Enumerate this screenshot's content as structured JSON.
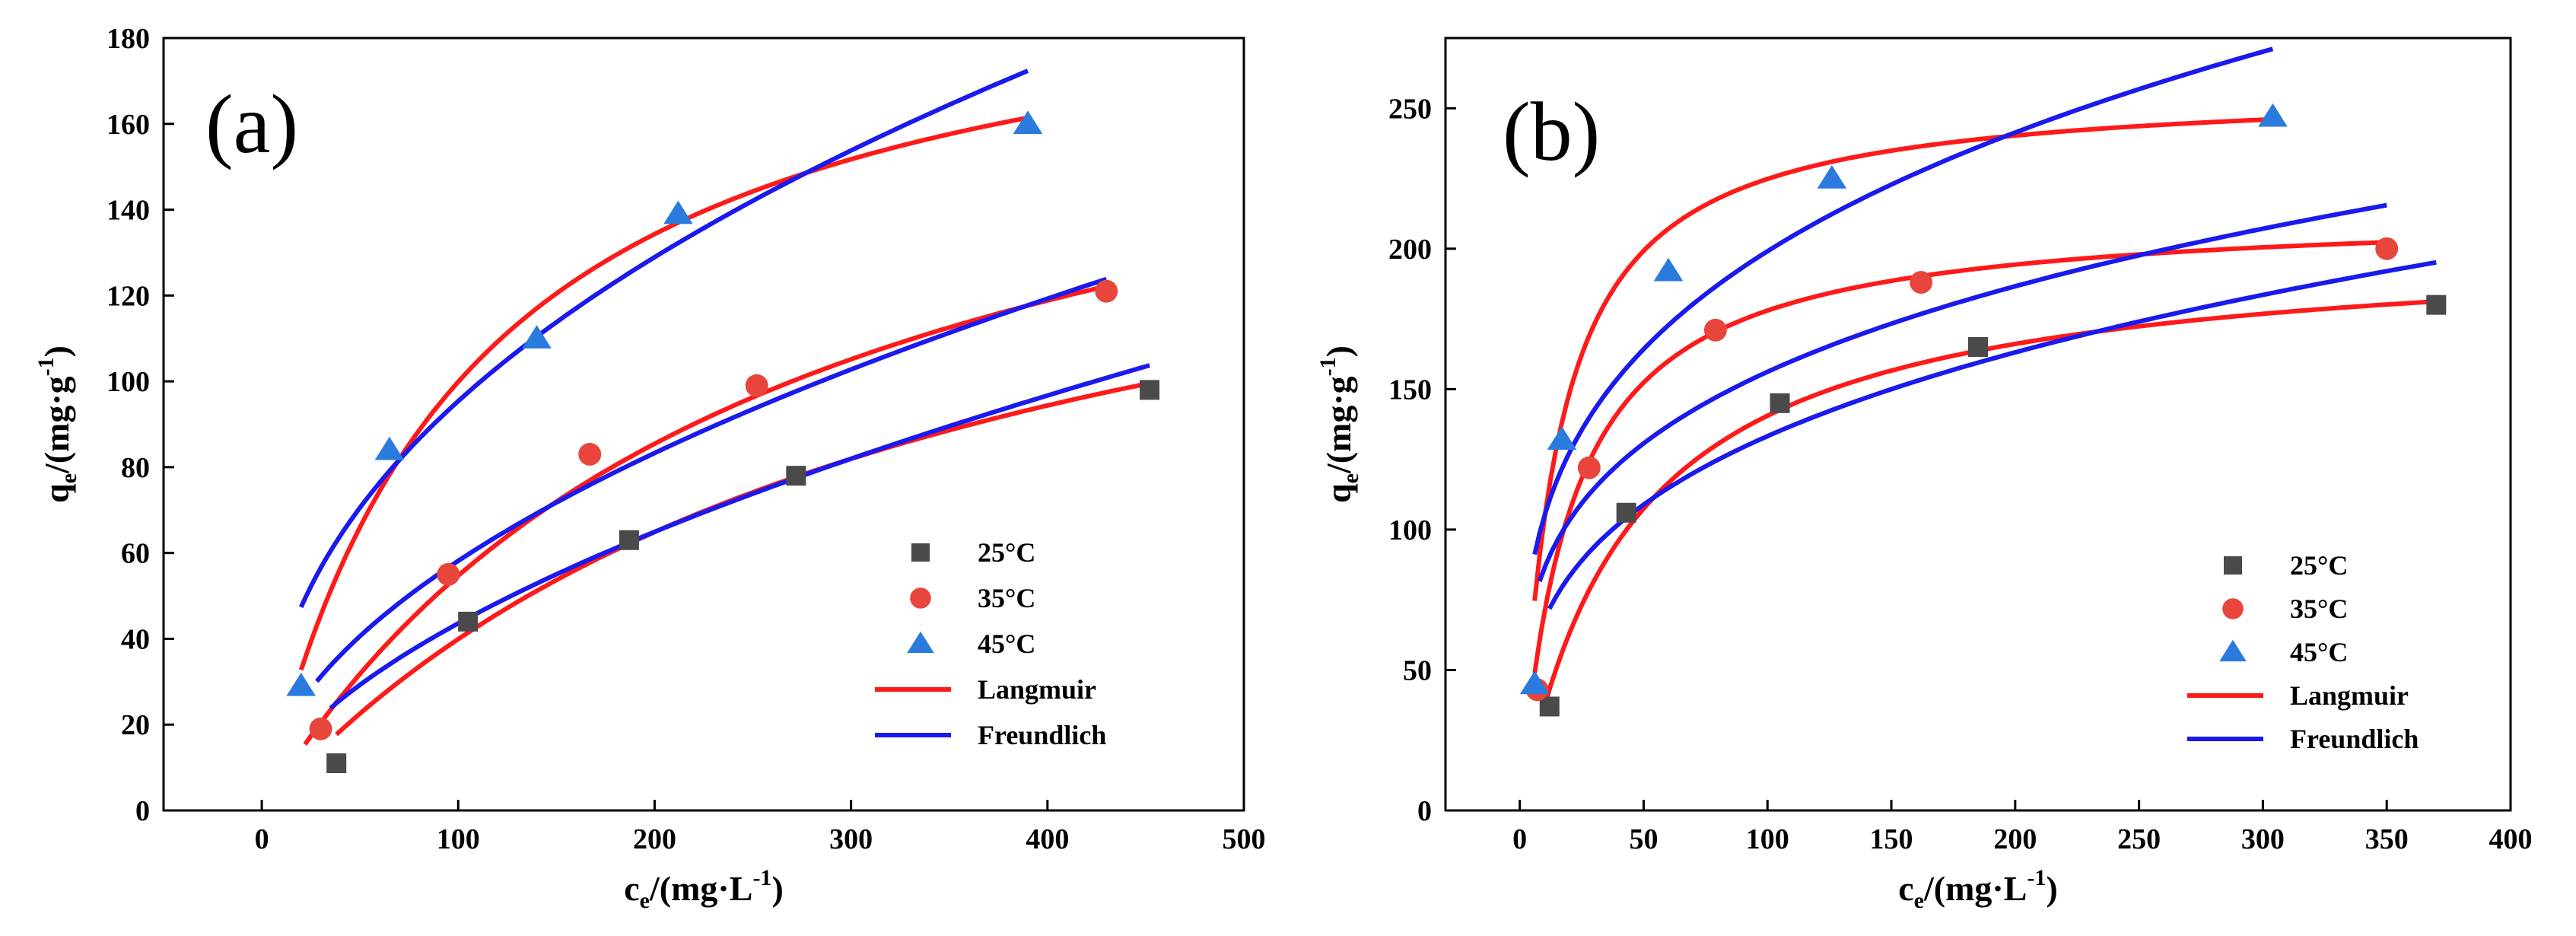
{
  "chart_data": [
    {
      "type": "scatter",
      "panel_label": "(a)",
      "xlabel": "c",
      "xlabel_sub": "e",
      "xlabel_unit": "/(mg·L",
      "xlabel_sup": "-1",
      "xlabel_close": ")",
      "ylabel": "q",
      "ylabel_sub": "e",
      "ylabel_unit": "/(mg·g",
      "ylabel_sup": "-1",
      "ylabel_close": ")",
      "xlim": [
        -50,
        500
      ],
      "ylim": [
        0,
        180
      ],
      "xticks": [
        0,
        100,
        200,
        300,
        400,
        500
      ],
      "yticks": [
        0,
        20,
        40,
        60,
        80,
        100,
        120,
        140,
        160,
        180
      ],
      "legend_position": "bottom-right",
      "series": [
        {
          "name": "25°C",
          "marker": "square",
          "color": "#4a4a4a",
          "x": [
            38,
            105,
            187,
            272,
            452
          ],
          "y": [
            11,
            44,
            63,
            78,
            98
          ]
        },
        {
          "name": "35°C",
          "marker": "circle",
          "color": "#e8453c",
          "x": [
            30,
            95,
            167,
            252,
            430
          ],
          "y": [
            19,
            55,
            83,
            99,
            121
          ]
        },
        {
          "name": "45°C",
          "marker": "triangle",
          "color": "#2b7bde",
          "x": [
            20,
            65,
            140,
            212,
            390
          ],
          "y": [
            29,
            84,
            110,
            139,
            160
          ]
        }
      ],
      "fits": [
        {
          "name": "Langmuir",
          "color": "#ff1a1a",
          "model": "langmuir",
          "curves": [
            {
              "qm": 173,
              "KL": 0.003,
              "x_range": [
                38,
                452
              ]
            },
            {
              "qm": 195,
              "KL": 0.0039,
              "x_range": [
                22,
                430
              ]
            },
            {
              "qm": 205,
              "KL": 0.0095,
              "x_range": [
                20,
                390
              ]
            }
          ]
        },
        {
          "name": "Freundlich",
          "color": "#1a1aee",
          "model": "freundlich",
          "curves": [
            {
              "KF": 3.09,
              "n": 1.74,
              "x_range": [
                35,
                452
              ]
            },
            {
              "KF": 5.35,
              "n": 1.93,
              "x_range": [
                28,
                430
              ]
            },
            {
              "KF": 12.88,
              "n": 2.3,
              "x_range": [
                20,
                390
              ]
            }
          ]
        }
      ]
    },
    {
      "type": "scatter",
      "panel_label": "(b)",
      "xlabel": "c",
      "xlabel_sub": "e",
      "xlabel_unit": "/(mg·L",
      "xlabel_sup": "-1",
      "xlabel_close": ")",
      "ylabel": "q",
      "ylabel_sub": "e",
      "ylabel_unit": "/(mg·g",
      "ylabel_sup": "-1",
      "ylabel_close": ")",
      "xlim": [
        -30,
        400
      ],
      "ylim": [
        0,
        275
      ],
      "xticks": [
        0,
        50,
        100,
        150,
        200,
        250,
        300,
        350,
        400
      ],
      "yticks": [
        0,
        50,
        100,
        150,
        200,
        250
      ],
      "legend_position": "bottom-right",
      "series": [
        {
          "name": "25°C",
          "marker": "square",
          "color": "#4a4a4a",
          "x": [
            12,
            43,
            105,
            185,
            370
          ],
          "y": [
            37,
            106,
            145,
            165,
            180
          ]
        },
        {
          "name": "35°C",
          "marker": "circle",
          "color": "#e8453c",
          "x": [
            7,
            28,
            79,
            162,
            350
          ],
          "y": [
            43,
            122,
            171,
            188,
            200
          ]
        },
        {
          "name": "45°C",
          "marker": "triangle",
          "color": "#2b7bde",
          "x": [
            6,
            17,
            60,
            126,
            304
          ],
          "y": [
            45,
            132,
            192,
            225,
            247
          ]
        }
      ],
      "fits": [
        {
          "name": "Langmuir",
          "color": "#ff1a1a",
          "model": "langmuir",
          "curves": [
            {
              "qm": 203,
              "KL": 0.0225,
              "x_range": [
                10,
                370
              ]
            },
            {
              "qm": 214,
              "KL": 0.0494,
              "x_range": [
                6,
                350
              ]
            },
            {
              "qm": 258,
              "KL": 0.0678,
              "x_range": [
                6,
                304
              ]
            }
          ]
        },
        {
          "name": "Freundlich",
          "color": "#1a1aee",
          "model": "freundlich",
          "curves": [
            {
              "KF": 34.8,
              "n": 3.43,
              "x_range": [
                12,
                370
              ]
            },
            {
              "KF": 47.8,
              "n": 3.89,
              "x_range": [
                8,
                350
              ]
            },
            {
              "KF": 55.4,
              "n": 3.6,
              "x_range": [
                6,
                304
              ]
            }
          ]
        }
      ]
    }
  ]
}
